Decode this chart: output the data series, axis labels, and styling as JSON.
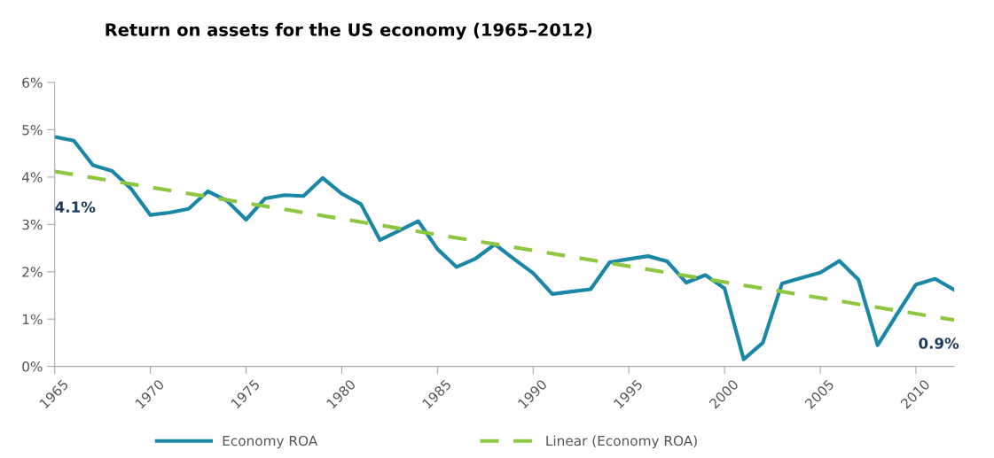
{
  "chart_data": {
    "type": "line",
    "title": "Return on assets for the US economy (1965–2012)",
    "x": [
      1965,
      1966,
      1967,
      1968,
      1969,
      1970,
      1971,
      1972,
      1973,
      1974,
      1975,
      1976,
      1977,
      1978,
      1979,
      1980,
      1981,
      1982,
      1983,
      1984,
      1985,
      1986,
      1987,
      1988,
      1989,
      1990,
      1991,
      1992,
      1993,
      1994,
      1995,
      1996,
      1997,
      1998,
      1999,
      2000,
      2001,
      2002,
      2003,
      2004,
      2005,
      2006,
      2007,
      2008,
      2009,
      2010,
      2011,
      2012
    ],
    "series": [
      {
        "name": "Economy ROA",
        "color": "#1b87a6",
        "line_style": "solid",
        "values": [
          4.85,
          4.77,
          4.25,
          4.13,
          3.75,
          3.2,
          3.25,
          3.33,
          3.7,
          3.5,
          3.1,
          3.55,
          3.62,
          3.6,
          3.98,
          3.65,
          3.43,
          2.67,
          2.87,
          3.07,
          2.48,
          2.1,
          2.28,
          2.58,
          2.27,
          1.97,
          1.53,
          1.58,
          1.63,
          2.2,
          2.27,
          2.33,
          2.22,
          1.77,
          1.93,
          1.65,
          0.15,
          0.5,
          1.75,
          1.87,
          1.98,
          2.23,
          1.83,
          0.45,
          1.1,
          1.73,
          1.85,
          1.62
        ]
      },
      {
        "name": "Linear (Economy ROA)",
        "color": "#8dc63f",
        "line_style": "dashed",
        "x": [
          1965,
          2012
        ],
        "values": [
          4.12,
          0.98
        ]
      }
    ],
    "annotations": [
      {
        "text": "4.1%",
        "x": 1965,
        "y": 4.12
      },
      {
        "text": "0.9%",
        "x": 2012,
        "y": 0.98
      }
    ],
    "xlim": [
      1965,
      2012
    ],
    "xticks": [
      1965,
      1970,
      1975,
      1980,
      1985,
      1990,
      1995,
      2000,
      2005,
      2010
    ],
    "ylim": [
      0,
      6
    ],
    "yticks": [
      {
        "value": 0,
        "label": "0%"
      },
      {
        "value": 1,
        "label": "1%"
      },
      {
        "value": 2,
        "label": "2%"
      },
      {
        "value": 3,
        "label": "3%"
      },
      {
        "value": 4,
        "label": "4%"
      },
      {
        "value": 5,
        "label": "5%"
      },
      {
        "value": 6,
        "label": "6%"
      }
    ],
    "grid": false,
    "legend": "bottom",
    "marker": "none"
  }
}
